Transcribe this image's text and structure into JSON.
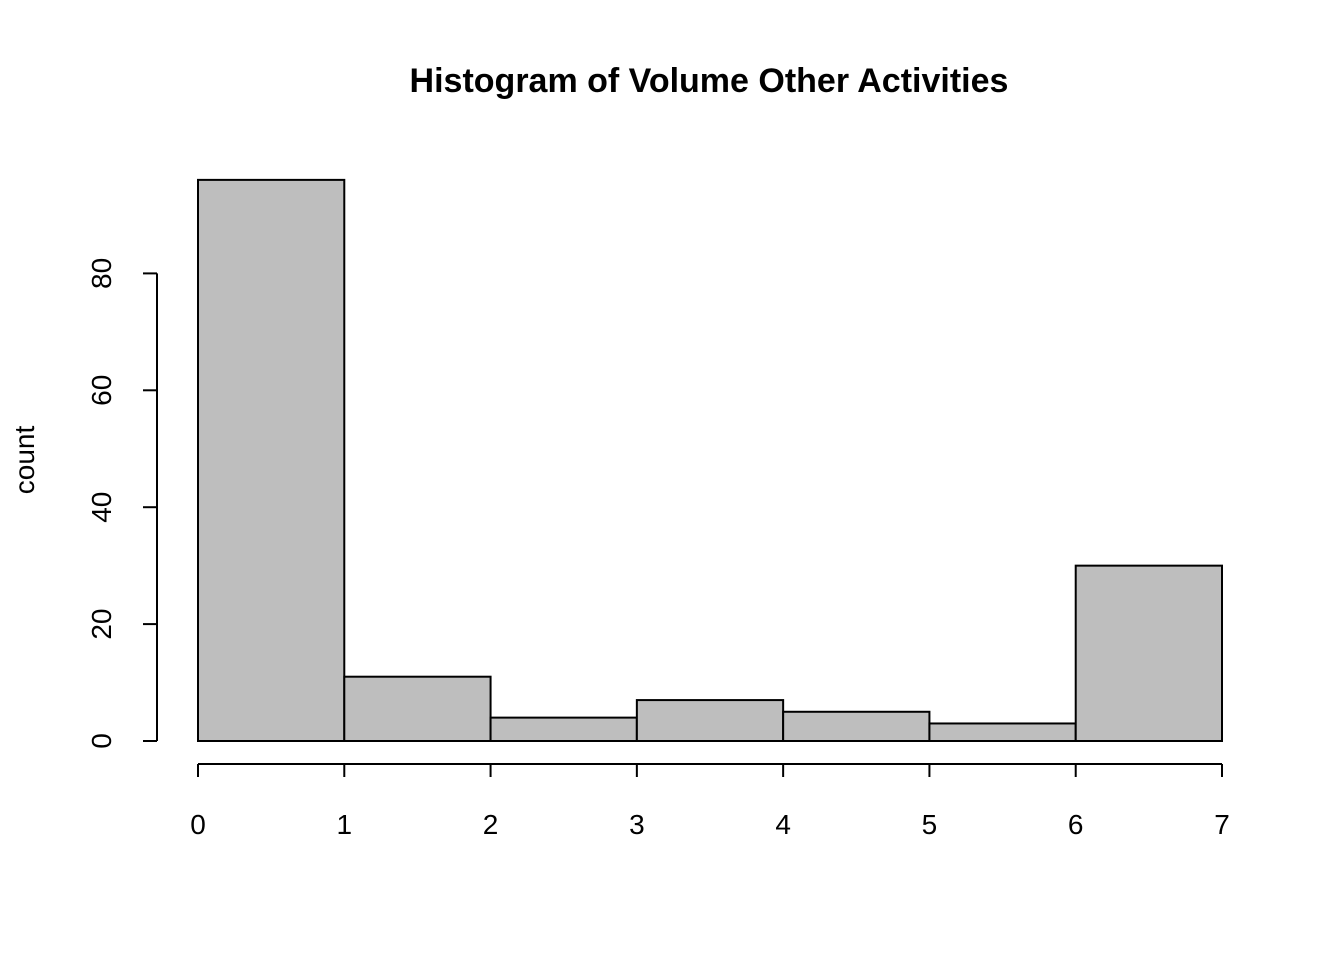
{
  "chart_data": {
    "type": "bar",
    "title": "Histogram of Volume Other Activities",
    "xlabel": "",
    "ylabel": "count",
    "bins": [
      {
        "from": 0,
        "to": 1,
        "count": 96
      },
      {
        "from": 1,
        "to": 2,
        "count": 11
      },
      {
        "from": 2,
        "to": 3,
        "count": 4
      },
      {
        "from": 3,
        "to": 4,
        "count": 7
      },
      {
        "from": 4,
        "to": 5,
        "count": 5
      },
      {
        "from": 5,
        "to": 6,
        "count": 3
      },
      {
        "from": 6,
        "to": 7,
        "count": 30
      }
    ],
    "xlim": [
      0,
      7
    ],
    "ylim": [
      0,
      96
    ],
    "x_ticks": [
      0,
      1,
      2,
      3,
      4,
      5,
      6,
      7
    ],
    "y_ticks": [
      0,
      20,
      40,
      60,
      80
    ],
    "grid": false,
    "bar_fill": "#bebebe",
    "bar_edge": "#000000"
  }
}
